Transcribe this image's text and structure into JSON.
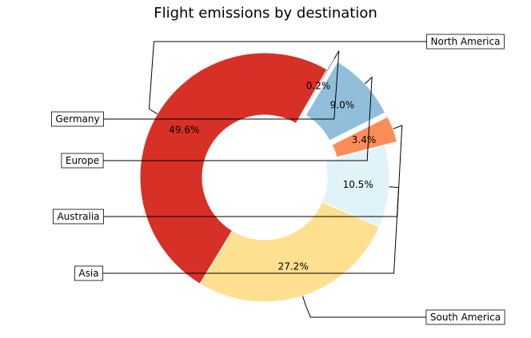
{
  "chart_data": {
    "type": "pie",
    "title": "Flight emissions by destination",
    "donut": true,
    "slices": [
      {
        "label": "North America",
        "value": 49.6,
        "pct_label": "49.6%",
        "color": "#d73027",
        "explode": 0
      },
      {
        "label": "South America",
        "value": 27.2,
        "pct_label": "27.2%",
        "color": "#fee090",
        "explode": 0
      },
      {
        "label": "Asia",
        "value": 10.5,
        "pct_label": "10.5%",
        "color": "#e0f3f8",
        "explode": 0
      },
      {
        "label": "Australia",
        "value": 3.4,
        "pct_label": "3.4%",
        "color": "#fc8d59",
        "explode": 0.1
      },
      {
        "label": "Europe",
        "value": 9.0,
        "pct_label": "9.0%",
        "color": "#91bfdb",
        "explode": 0.1
      },
      {
        "label": "Germany",
        "value": 0.2,
        "pct_label": "0.2%",
        "color": "#4575b4",
        "explode": 0.1
      }
    ]
  }
}
